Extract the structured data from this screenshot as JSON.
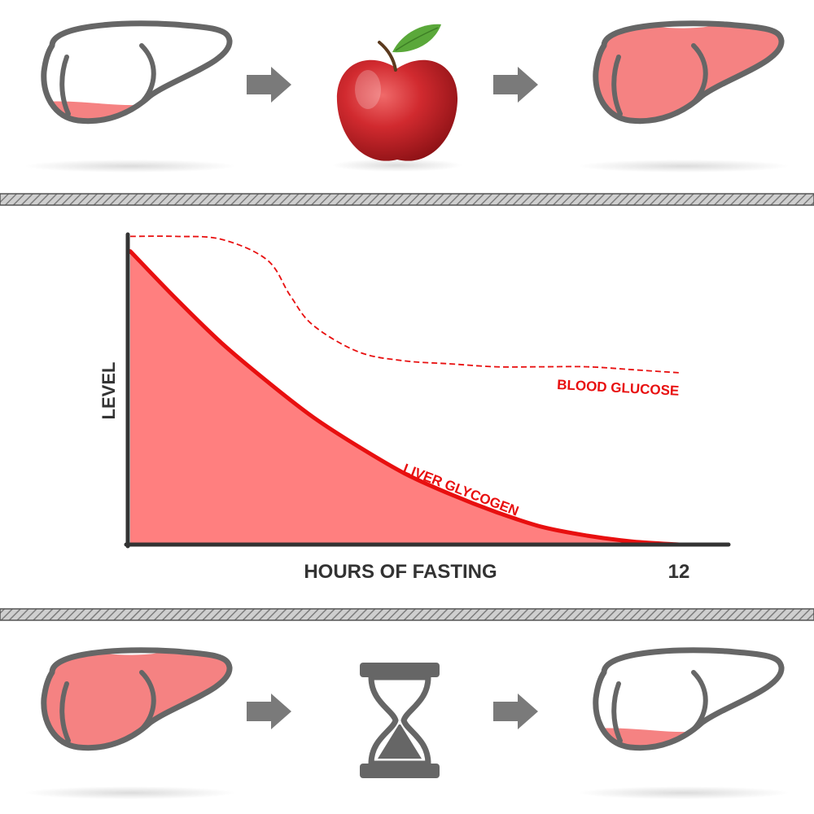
{
  "top_row": {
    "start_fill": 0.2,
    "end_fill": 0.95,
    "middle_icon": "apple-icon",
    "arrow_icon": "arrow-right-icon"
  },
  "bottom_row": {
    "start_fill": 0.95,
    "end_fill": 0.2,
    "middle_icon": "hourglass-icon",
    "arrow_icon": "arrow-right-icon"
  },
  "colors": {
    "liver_fill": "#f58282",
    "liver_outline": "#666666",
    "curve": "#e80f0f",
    "area": "#ff7f7f",
    "axis": "#333333",
    "arrow": "#7a7a7a",
    "apple": "#c8202a",
    "leaf": "#5aa83a"
  },
  "chart": {
    "ylabel": "LEVEL",
    "xlabel": "HOURS OF FASTING",
    "x_tick": "12",
    "glucose_label": "BLOOD GLUCOSE",
    "glycogen_label": "LIVER GLYCOGEN"
  },
  "chart_data": {
    "type": "area",
    "xlabel": "HOURS OF FASTING",
    "ylabel": "LEVEL",
    "x_ticks": [
      "12"
    ],
    "xlim": [
      0,
      13
    ],
    "ylim": [
      0,
      1
    ],
    "series": [
      {
        "name": "LIVER GLYCOGEN",
        "style": "solid-area",
        "x": [
          0,
          1,
          2,
          3,
          4,
          5,
          6,
          7,
          8,
          9,
          10,
          11,
          12
        ],
        "y": [
          0.99,
          0.83,
          0.68,
          0.55,
          0.43,
          0.33,
          0.24,
          0.17,
          0.11,
          0.06,
          0.03,
          0.01,
          0.0
        ]
      },
      {
        "name": "BLOOD GLUCOSE",
        "style": "dashed",
        "x": [
          0,
          1,
          2,
          3,
          3.5,
          4,
          5,
          6,
          7,
          8,
          9,
          10,
          11,
          12
        ],
        "y": [
          1.04,
          1.04,
          1.03,
          0.96,
          0.84,
          0.74,
          0.65,
          0.62,
          0.61,
          0.6,
          0.6,
          0.6,
          0.59,
          0.58
        ]
      }
    ]
  }
}
